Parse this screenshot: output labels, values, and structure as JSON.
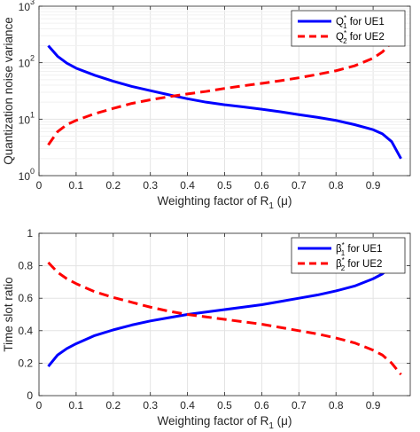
{
  "chart_data": [
    {
      "type": "line",
      "yscale": "log",
      "xlabel_main": "Weighting factor of R",
      "xlabel_sub": "1",
      "xlabel_tail": " (μ)",
      "ylabel": "Quantization noise variance",
      "xlim": [
        0,
        1
      ],
      "ylim": [
        1,
        1000
      ],
      "xticks": [
        0,
        0.1,
        0.2,
        0.3,
        0.4,
        0.5,
        0.6,
        0.7,
        0.8,
        0.9
      ],
      "xtick_labels": [
        "0",
        "0.1",
        "0.2",
        "0.3",
        "0.4",
        "0.5",
        "0.6",
        "0.7",
        "0.8",
        "0.9"
      ],
      "ytick_bases": [
        "10",
        "10",
        "10",
        "10"
      ],
      "ytick_exps": [
        "0",
        "1",
        "2",
        "3"
      ],
      "yticks": [
        1,
        10,
        100,
        1000
      ],
      "grid": true,
      "legend_position": "top-right",
      "series": [
        {
          "name": "Q₁* for UE1",
          "legend_main": "Q",
          "legend_sub": "1",
          "legend_sup": "*",
          "legend_tail": " for UE1",
          "color": "#0000ff",
          "style": "solid",
          "x": [
            0.025,
            0.05,
            0.075,
            0.1,
            0.15,
            0.2,
            0.25,
            0.3,
            0.35,
            0.4,
            0.45,
            0.5,
            0.55,
            0.6,
            0.65,
            0.7,
            0.75,
            0.8,
            0.85,
            0.9,
            0.925,
            0.95,
            0.975
          ],
          "values": [
            200,
            130,
            98,
            80,
            60,
            47,
            38,
            32,
            27,
            23,
            20,
            18,
            16.5,
            15,
            13.5,
            12,
            10.8,
            9.5,
            8,
            6.5,
            5.5,
            4,
            2
          ]
        },
        {
          "name": "Q₂* for UE2",
          "legend_main": "Q",
          "legend_sub": "2",
          "legend_sup": "*",
          "legend_tail": " for UE2",
          "color": "#ff0000",
          "style": "dashed",
          "x": [
            0.025,
            0.05,
            0.075,
            0.1,
            0.15,
            0.2,
            0.25,
            0.3,
            0.35,
            0.4,
            0.45,
            0.5,
            0.55,
            0.6,
            0.65,
            0.7,
            0.75,
            0.8,
            0.85,
            0.9,
            0.925,
            0.95,
            0.975
          ],
          "values": [
            3.5,
            6,
            8,
            9.5,
            12.5,
            15.5,
            19,
            22,
            25,
            28,
            31,
            35,
            39,
            43,
            48,
            54,
            62,
            72,
            88,
            120,
            155,
            230,
            430
          ]
        }
      ]
    },
    {
      "type": "line",
      "yscale": "linear",
      "xlabel_main": "Weighting factor of R",
      "xlabel_sub": "1",
      "xlabel_tail": " (μ)",
      "ylabel": "Time slot ratio",
      "xlim": [
        0,
        1
      ],
      "ylim": [
        0,
        1
      ],
      "xticks": [
        0,
        0.1,
        0.2,
        0.3,
        0.4,
        0.5,
        0.6,
        0.7,
        0.8,
        0.9
      ],
      "xtick_labels": [
        "0",
        "0.1",
        "0.2",
        "0.3",
        "0.4",
        "0.5",
        "0.6",
        "0.7",
        "0.8",
        "0.9"
      ],
      "yticks": [
        0,
        0.2,
        0.4,
        0.6,
        0.8,
        1
      ],
      "ytick_labels": [
        "0",
        "0.2",
        "0.4",
        "0.6",
        "0.8",
        "1"
      ],
      "grid": true,
      "legend_position": "top-right",
      "series": [
        {
          "name": "β₁* for UE1",
          "legend_main": "β",
          "legend_sub": "1",
          "legend_sup": "*",
          "legend_tail": " for UE1",
          "color": "#0000ff",
          "style": "solid",
          "x": [
            0.025,
            0.05,
            0.075,
            0.1,
            0.15,
            0.2,
            0.25,
            0.3,
            0.35,
            0.4,
            0.45,
            0.5,
            0.55,
            0.6,
            0.65,
            0.7,
            0.75,
            0.8,
            0.85,
            0.9,
            0.925,
            0.95,
            0.975
          ],
          "values": [
            0.18,
            0.25,
            0.29,
            0.32,
            0.37,
            0.405,
            0.435,
            0.46,
            0.48,
            0.5,
            0.515,
            0.53,
            0.545,
            0.56,
            0.58,
            0.6,
            0.62,
            0.645,
            0.675,
            0.72,
            0.75,
            0.8,
            0.88
          ]
        },
        {
          "name": "β₂* for UE2",
          "legend_main": "β",
          "legend_sub": "2",
          "legend_sup": "*",
          "legend_tail": " for UE2",
          "color": "#ff0000",
          "style": "dashed",
          "x": [
            0.025,
            0.05,
            0.075,
            0.1,
            0.15,
            0.2,
            0.25,
            0.3,
            0.35,
            0.4,
            0.45,
            0.5,
            0.55,
            0.6,
            0.65,
            0.7,
            0.75,
            0.8,
            0.85,
            0.9,
            0.925,
            0.95,
            0.975
          ],
          "values": [
            0.82,
            0.76,
            0.72,
            0.69,
            0.64,
            0.605,
            0.575,
            0.545,
            0.52,
            0.5,
            0.485,
            0.47,
            0.455,
            0.44,
            0.42,
            0.4,
            0.38,
            0.355,
            0.325,
            0.28,
            0.25,
            0.2,
            0.13
          ]
        }
      ]
    }
  ]
}
